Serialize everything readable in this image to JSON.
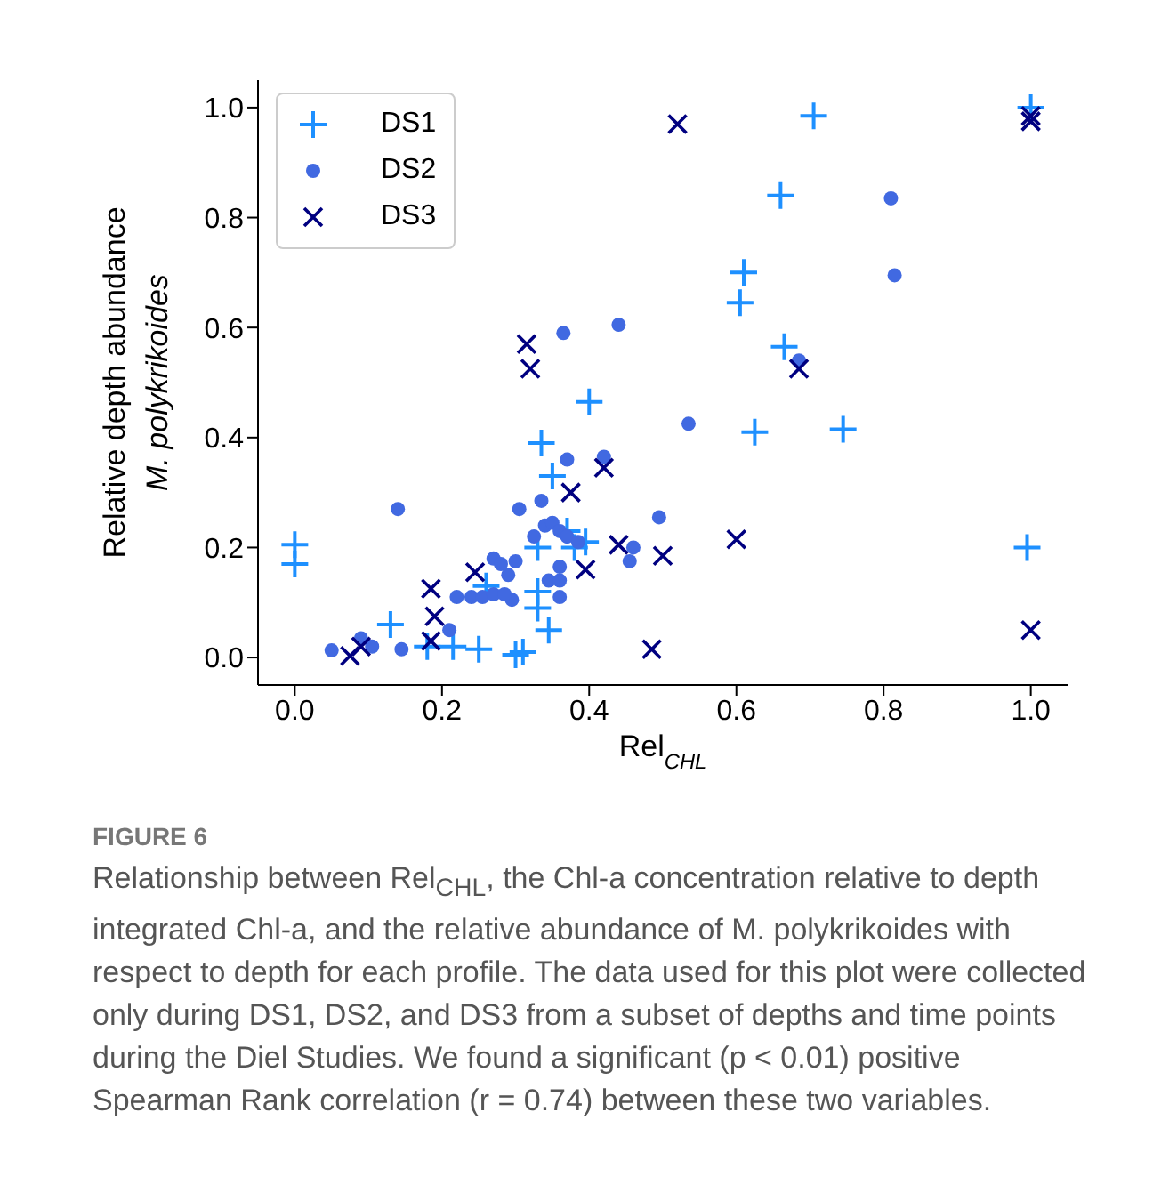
{
  "chart_data": {
    "type": "scatter",
    "xlabel": "Rel$_{CHL}$",
    "ylabel": "Relative depth abundance\nM. polykrikoides",
    "xlim": [
      -0.05,
      1.05
    ],
    "xticks": [
      {
        "value": 0,
        "label": "0.0"
      },
      0.2,
      0.4,
      0.6,
      0.8,
      {
        "value": 1,
        "label": "1.0"
      }
    ],
    "ylim": [
      -0.05,
      1.05
    ],
    "yticks": [
      {
        "value": 0,
        "label": "0.0"
      },
      0.2,
      0.4,
      0.6,
      0.8,
      {
        "value": 1,
        "label": "1.0"
      }
    ],
    "grid": false,
    "legend": "top left",
    "series": [
      {
        "name": "DS1",
        "color": "#1e90ff",
        "marker": "plus",
        "x": [
          0.0,
          0.0,
          0.13,
          0.18,
          0.215,
          0.25,
          0.3,
          0.31,
          0.26,
          0.33,
          0.33,
          0.345,
          0.35,
          0.33,
          0.38,
          0.395,
          0.37,
          0.335,
          0.4,
          0.705,
          0.66,
          0.61,
          0.605,
          0.665,
          0.625,
          0.745,
          1.0,
          0.995
        ],
        "values": [
          0.205,
          0.17,
          0.06,
          0.02,
          0.02,
          0.015,
          0.005,
          0.01,
          0.13,
          0.12,
          0.09,
          0.05,
          0.33,
          0.2,
          0.2,
          0.21,
          0.23,
          0.39,
          0.465,
          0.985,
          0.84,
          0.7,
          0.645,
          0.565,
          0.41,
          0.415,
          1.0,
          0.2
        ]
      },
      {
        "name": "DS2",
        "color": "#4169e1",
        "marker": "circle",
        "x": [
          0.05,
          0.09,
          0.105,
          0.14,
          0.145,
          0.21,
          0.22,
          0.24,
          0.255,
          0.27,
          0.28,
          0.29,
          0.295,
          0.3,
          0.27,
          0.285,
          0.305,
          0.325,
          0.335,
          0.34,
          0.35,
          0.36,
          0.37,
          0.36,
          0.345,
          0.36,
          0.36,
          0.37,
          0.455,
          0.46,
          0.495,
          0.385,
          0.365,
          0.44,
          0.81,
          0.815,
          0.535,
          0.42,
          0.685
        ],
        "values": [
          0.013,
          0.035,
          0.02,
          0.27,
          0.015,
          0.05,
          0.11,
          0.11,
          0.11,
          0.18,
          0.17,
          0.15,
          0.105,
          0.175,
          0.115,
          0.115,
          0.27,
          0.22,
          0.285,
          0.24,
          0.245,
          0.23,
          0.22,
          0.165,
          0.14,
          0.14,
          0.11,
          0.36,
          0.175,
          0.2,
          0.255,
          0.21,
          0.59,
          0.605,
          0.835,
          0.695,
          0.425,
          0.365,
          0.54
        ]
      },
      {
        "name": "DS3",
        "color": "#000080",
        "marker": "cross",
        "x": [
          0.075,
          0.09,
          0.185,
          0.19,
          0.185,
          0.245,
          0.375,
          0.42,
          0.395,
          0.44,
          0.5,
          0.485,
          0.52,
          1.0,
          1.0,
          0.315,
          0.32,
          0.685,
          0.6,
          1.0
        ],
        "values": [
          0.003,
          0.02,
          0.125,
          0.075,
          0.03,
          0.155,
          0.3,
          0.345,
          0.16,
          0.205,
          0.185,
          0.015,
          0.97,
          0.975,
          0.985,
          0.57,
          0.525,
          0.525,
          0.215,
          0.05
        ]
      }
    ],
    "annotations": [
      "FIGURE 6",
      "Relationship between Rel$_{CHL}$, the Chl-a concentration relative to depth integrated Chl-a, and the relative abundance of M. polykrikoides with respect to depth for each profile. The data used for this plot were collected only during DS1, DS2, and DS3 from a subset of depths and time points during the Diel Studies. We found a significant (p < 0.01) positive Spearman Rank correlation (r = 0.74) between these two variables."
    ]
  }
}
